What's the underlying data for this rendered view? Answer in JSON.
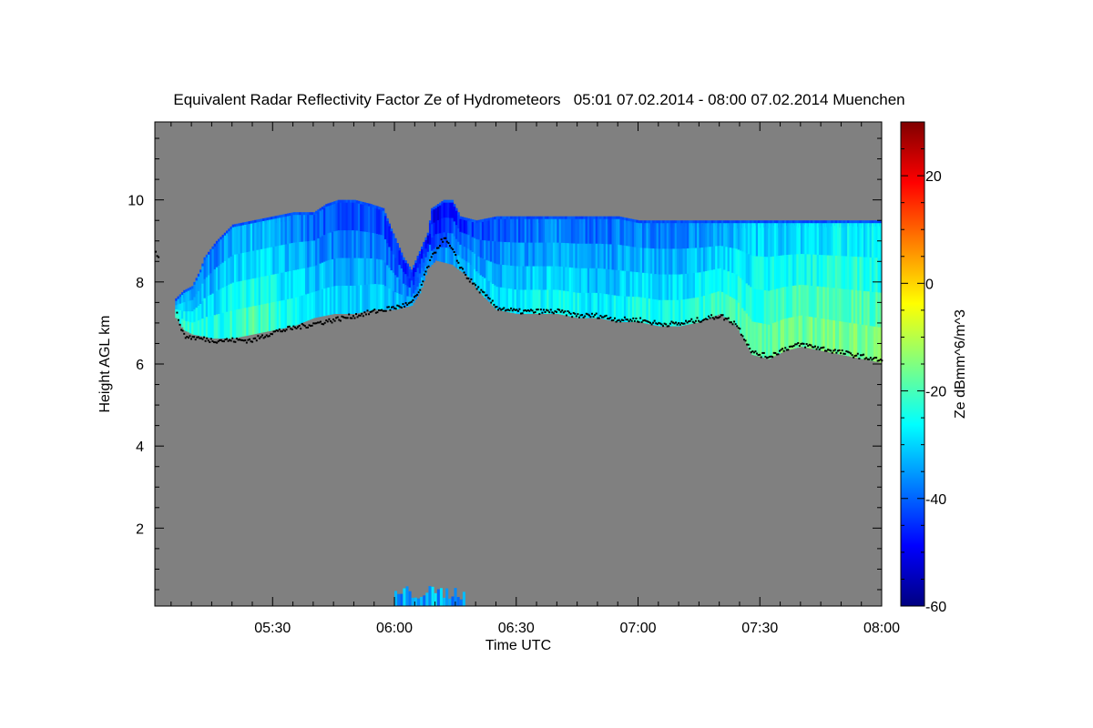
{
  "chart_data": {
    "type": "heatmap",
    "title": "Equivalent Radar Reflectivity Factor Ze of Hydrometeors   05:01 07.02.2014 - 08:00 07.02.2014 Muenchen",
    "xlabel": "Time UTC",
    "ylabel": "Height AGL km",
    "x_range_minutes_utc": [
      301,
      480
    ],
    "x_ticks": [
      {
        "minute": 330,
        "label": "05:30"
      },
      {
        "minute": 360,
        "label": "06:00"
      },
      {
        "minute": 390,
        "label": "06:30"
      },
      {
        "minute": 420,
        "label": "07:00"
      },
      {
        "minute": 450,
        "label": "07:30"
      },
      {
        "minute": 480,
        "label": "08:00"
      }
    ],
    "y_range_km": [
      0.1,
      11.9
    ],
    "y_ticks": [
      {
        "value": 2,
        "label": "2"
      },
      {
        "value": 4,
        "label": "4"
      },
      {
        "value": 6,
        "label": "6"
      },
      {
        "value": 8,
        "label": "8"
      },
      {
        "value": 10,
        "label": "10"
      }
    ],
    "background_color": "#808080",
    "colorbar": {
      "label": "Ze dBmm^6/m^3",
      "range": [
        -60,
        30
      ],
      "ticks": [
        {
          "value": -60,
          "label": "-60"
        },
        {
          "value": -40,
          "label": "-40"
        },
        {
          "value": -20,
          "label": "-20"
        },
        {
          "value": 0,
          "label": "0"
        },
        {
          "value": 20,
          "label": "20"
        }
      ],
      "colors": [
        "#000080",
        "#0000ff",
        "#0080ff",
        "#00ffff",
        "#80ff80",
        "#ffff00",
        "#ff8000",
        "#ff0000",
        "#800000"
      ]
    },
    "cloud_layer": {
      "top_km": [
        [
          306,
          7.6
        ],
        [
          308,
          7.8
        ],
        [
          310,
          7.9
        ],
        [
          312,
          8.3
        ],
        [
          313,
          8.6
        ],
        [
          316,
          9.0
        ],
        [
          320,
          9.4
        ],
        [
          325,
          9.5
        ],
        [
          330,
          9.6
        ],
        [
          335,
          9.7
        ],
        [
          340,
          9.7
        ],
        [
          343,
          9.9
        ],
        [
          346,
          10.0
        ],
        [
          350,
          10.0
        ],
        [
          354,
          9.9
        ],
        [
          357,
          9.8
        ],
        [
          359,
          9.3
        ],
        [
          362,
          8.6
        ],
        [
          364,
          8.3
        ],
        [
          368,
          9.2
        ],
        [
          369,
          9.8
        ],
        [
          372,
          10.0
        ],
        [
          374,
          10.0
        ],
        [
          376,
          9.6
        ],
        [
          380,
          9.5
        ],
        [
          385,
          9.6
        ],
        [
          390,
          9.6
        ],
        [
          395,
          9.6
        ],
        [
          400,
          9.6
        ],
        [
          405,
          9.6
        ],
        [
          410,
          9.6
        ],
        [
          415,
          9.6
        ],
        [
          420,
          9.5
        ],
        [
          425,
          9.5
        ],
        [
          430,
          9.5
        ],
        [
          435,
          9.5
        ],
        [
          440,
          9.5
        ],
        [
          445,
          9.5
        ],
        [
          450,
          9.5
        ],
        [
          455,
          9.5
        ],
        [
          460,
          9.5
        ],
        [
          465,
          9.5
        ],
        [
          470,
          9.5
        ],
        [
          475,
          9.5
        ],
        [
          480,
          9.5
        ]
      ],
      "base_km": [
        [
          306,
          7.2
        ],
        [
          308,
          6.9
        ],
        [
          310,
          6.8
        ],
        [
          315,
          6.7
        ],
        [
          320,
          6.7
        ],
        [
          325,
          6.8
        ],
        [
          330,
          6.9
        ],
        [
          335,
          7.0
        ],
        [
          340,
          7.2
        ],
        [
          345,
          7.3
        ],
        [
          350,
          7.3
        ],
        [
          355,
          7.4
        ],
        [
          360,
          7.4
        ],
        [
          364,
          7.5
        ],
        [
          366,
          7.8
        ],
        [
          368,
          8.4
        ],
        [
          370,
          8.6
        ],
        [
          374,
          8.5
        ],
        [
          378,
          8.2
        ],
        [
          381,
          7.8
        ],
        [
          385,
          7.4
        ],
        [
          390,
          7.3
        ],
        [
          395,
          7.3
        ],
        [
          400,
          7.3
        ],
        [
          405,
          7.2
        ],
        [
          410,
          7.2
        ],
        [
          415,
          7.1
        ],
        [
          420,
          7.1
        ],
        [
          425,
          7.0
        ],
        [
          430,
          7.0
        ],
        [
          435,
          7.1
        ],
        [
          440,
          7.3
        ],
        [
          444,
          7.0
        ],
        [
          448,
          6.3
        ],
        [
          452,
          6.2
        ],
        [
          456,
          6.4
        ],
        [
          460,
          6.5
        ],
        [
          465,
          6.4
        ],
        [
          470,
          6.3
        ],
        [
          475,
          6.2
        ],
        [
          480,
          6.1
        ]
      ],
      "ze_dbz": [
        [
          306,
          -22
        ],
        [
          315,
          -25
        ],
        [
          325,
          -20
        ],
        [
          335,
          -25
        ],
        [
          345,
          -30
        ],
        [
          355,
          -30
        ],
        [
          362,
          -33
        ],
        [
          370,
          -38
        ],
        [
          380,
          -30
        ],
        [
          390,
          -28
        ],
        [
          400,
          -25
        ],
        [
          410,
          -28
        ],
        [
          420,
          -25
        ],
        [
          430,
          -25
        ],
        [
          440,
          -22
        ],
        [
          450,
          -18
        ],
        [
          460,
          -17
        ],
        [
          470,
          -15
        ],
        [
          480,
          -16
        ]
      ]
    },
    "lidar_cloud_base_km": [
      [
        301,
        8.8
      ],
      [
        306,
        7.3
      ],
      [
        308,
        6.7
      ],
      [
        315,
        6.6
      ],
      [
        320,
        6.6
      ],
      [
        325,
        6.6
      ],
      [
        330,
        6.8
      ],
      [
        335,
        6.9
      ],
      [
        340,
        7.0
      ],
      [
        345,
        7.1
      ],
      [
        350,
        7.2
      ],
      [
        355,
        7.3
      ],
      [
        360,
        7.4
      ],
      [
        364,
        7.5
      ],
      [
        366,
        7.8
      ],
      [
        368,
        8.4
      ],
      [
        370,
        8.8
      ],
      [
        372,
        9.1
      ],
      [
        374,
        8.8
      ],
      [
        376,
        8.4
      ],
      [
        378,
        8.1
      ],
      [
        381,
        7.8
      ],
      [
        385,
        7.4
      ],
      [
        390,
        7.3
      ],
      [
        395,
        7.3
      ],
      [
        400,
        7.3
      ],
      [
        405,
        7.2
      ],
      [
        410,
        7.2
      ],
      [
        415,
        7.1
      ],
      [
        420,
        7.1
      ],
      [
        425,
        7.0
      ],
      [
        430,
        7.0
      ],
      [
        435,
        7.1
      ],
      [
        440,
        7.2
      ],
      [
        444,
        7.0
      ],
      [
        448,
        6.3
      ],
      [
        452,
        6.2
      ],
      [
        456,
        6.4
      ],
      [
        460,
        6.5
      ],
      [
        465,
        6.4
      ],
      [
        470,
        6.3
      ],
      [
        475,
        6.2
      ],
      [
        480,
        6.1
      ]
    ],
    "low_echo": {
      "x_minutes": [
        360,
        377
      ],
      "top_km": 0.6,
      "ze_dbz": -35
    }
  }
}
